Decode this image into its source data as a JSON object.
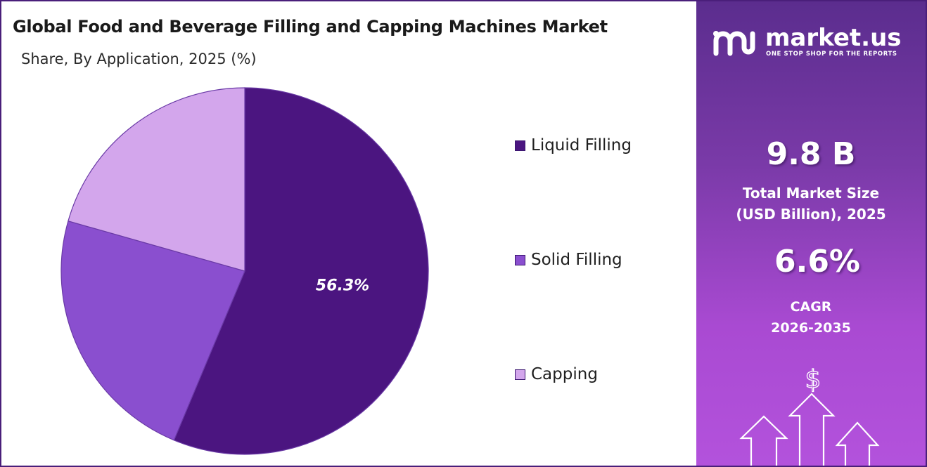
{
  "header": {
    "title": "Global Food and Beverage Filling and Capping Machines Market",
    "subtitle": "Share, By Application, 2025 (%)"
  },
  "chart_data": {
    "type": "pie",
    "categories": [
      "Liquid Filling",
      "Solid Filling",
      "Capping"
    ],
    "values": [
      56.3,
      23.1,
      20.6
    ],
    "data_labels": [
      "56.3%",
      "",
      ""
    ],
    "legend_position": "right",
    "colors": [
      "#4b1580",
      "#8a4fcf",
      "#d3a6ec"
    ]
  },
  "sidebar": {
    "brand_name": "market.us",
    "brand_tagline": "ONE STOP SHOP FOR THE REPORTS",
    "market_size_value": "9.8 B",
    "market_size_label_line1": "Total Market Size",
    "market_size_label_line2": "(USD Billion), 2025",
    "cagr_value": "6.6%",
    "cagr_label_line1": "CAGR",
    "cagr_label_line2": "2026-2035",
    "currency_symbol": "$"
  }
}
